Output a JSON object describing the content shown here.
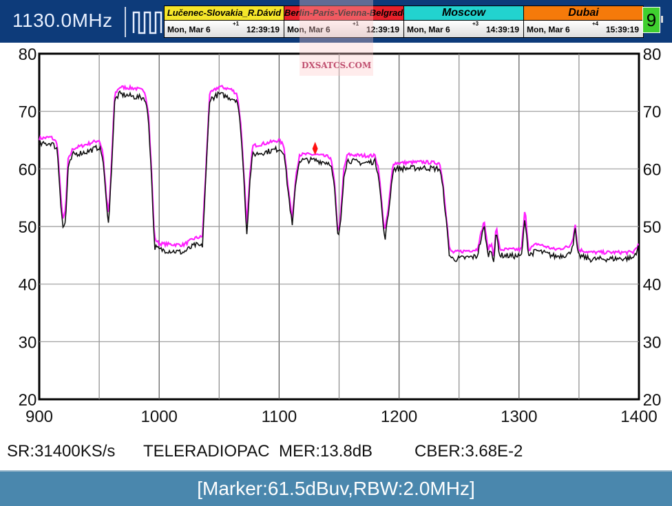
{
  "header": {
    "frequency": "1130.0MHz",
    "signal_icon": "pulse-wave-icon",
    "clocks": [
      {
        "city": "Lučenec-Slovakia_R.Dávid",
        "color": "#f5e52a",
        "date": "Mon, Mar 6",
        "offset": "+1",
        "time": "12:39:19"
      },
      {
        "city": "Berlin-Paris-Vienna-Belgrade",
        "color": "#e8202a",
        "date": "Mon, Mar 6",
        "offset": "+1",
        "time": "12:39:19"
      },
      {
        "city": "Moscow",
        "color": "#22d3cf",
        "date": "Mon, Mar 6",
        "offset": "+3",
        "time": "14:39:19"
      },
      {
        "city": "Dubai",
        "color": "#f57a0a",
        "date": "Mon, Mar 6",
        "offset": "+4",
        "time": "15:39:19"
      }
    ],
    "battery_label": "9",
    "watermark": "DXSATCS.COM"
  },
  "chart_data": {
    "type": "line",
    "xlim": [
      900,
      1400
    ],
    "ylim": [
      20,
      80
    ],
    "x_ticks": [
      "900",
      "1000",
      "1100",
      "1200",
      "1300",
      "1400"
    ],
    "y_ticks": [
      "80",
      "70",
      "60",
      "50",
      "40",
      "30",
      "20"
    ],
    "grid": true,
    "x_grid_step": 50,
    "y_grid_step": 10,
    "marker": {
      "freq": 1130,
      "level": 63.5,
      "color": "#ff1010"
    },
    "series": [
      {
        "color": "#ff20ff",
        "points": [
          [
            900,
            65.3
          ],
          [
            910,
            65.5
          ],
          [
            915,
            64.5
          ],
          [
            918,
            55
          ],
          [
            920,
            51
          ],
          [
            922,
            53
          ],
          [
            924,
            61.5
          ],
          [
            928,
            63.5
          ],
          [
            940,
            64.3
          ],
          [
            950,
            65
          ],
          [
            953,
            63
          ],
          [
            956,
            55
          ],
          [
            958,
            52
          ],
          [
            960,
            60
          ],
          [
            963,
            73
          ],
          [
            967,
            74.2
          ],
          [
            980,
            74
          ],
          [
            988,
            73.5
          ],
          [
            991,
            70
          ],
          [
            994,
            58
          ],
          [
            996,
            48
          ],
          [
            1000,
            47
          ],
          [
            1020,
            46.8
          ],
          [
            1030,
            48
          ],
          [
            1036,
            48.2
          ],
          [
            1039,
            60
          ],
          [
            1042,
            73
          ],
          [
            1050,
            74.3
          ],
          [
            1060,
            73.8
          ],
          [
            1065,
            73
          ],
          [
            1068,
            68
          ],
          [
            1071,
            58
          ],
          [
            1073,
            50
          ],
          [
            1076,
            60
          ],
          [
            1078,
            64
          ],
          [
            1090,
            64.5
          ],
          [
            1100,
            65
          ],
          [
            1104,
            64
          ],
          [
            1107,
            58
          ],
          [
            1111,
            51
          ],
          [
            1114,
            59
          ],
          [
            1117,
            62.5
          ],
          [
            1130,
            62.5
          ],
          [
            1143,
            62
          ],
          [
            1146,
            58
          ],
          [
            1149,
            49
          ],
          [
            1151,
            51
          ],
          [
            1154,
            60
          ],
          [
            1157,
            62.5
          ],
          [
            1170,
            62.3
          ],
          [
            1180,
            62.3
          ],
          [
            1183,
            60
          ],
          [
            1186,
            53
          ],
          [
            1188,
            49
          ],
          [
            1191,
            53
          ],
          [
            1195,
            61
          ],
          [
            1220,
            61.2
          ],
          [
            1234,
            61
          ],
          [
            1237,
            57
          ],
          [
            1242,
            46
          ],
          [
            1245,
            45.5
          ],
          [
            1265,
            46
          ],
          [
            1268,
            48.5
          ],
          [
            1271,
            51
          ],
          [
            1274,
            46
          ],
          [
            1277,
            47
          ],
          [
            1279,
            45
          ],
          [
            1281,
            50
          ],
          [
            1284,
            46
          ],
          [
            1302,
            46
          ],
          [
            1305,
            53
          ],
          [
            1308,
            46
          ],
          [
            1315,
            47
          ],
          [
            1330,
            46
          ],
          [
            1342,
            46.5
          ],
          [
            1345,
            48
          ],
          [
            1347,
            50.5
          ],
          [
            1349,
            46
          ],
          [
            1360,
            45.5
          ],
          [
            1395,
            45.5
          ],
          [
            1400,
            47
          ]
        ]
      },
      {
        "color": "#111111",
        "points": [
          [
            900,
            64.2
          ],
          [
            910,
            64.5
          ],
          [
            915,
            63.5
          ],
          [
            918,
            54
          ],
          [
            920,
            49.5
          ],
          [
            922,
            51
          ],
          [
            924,
            60
          ],
          [
            928,
            62.5
          ],
          [
            940,
            63
          ],
          [
            950,
            63.8
          ],
          [
            953,
            62
          ],
          [
            956,
            54
          ],
          [
            958,
            50.5
          ],
          [
            960,
            59
          ],
          [
            963,
            72
          ],
          [
            967,
            73
          ],
          [
            980,
            72.5
          ],
          [
            988,
            72.3
          ],
          [
            991,
            69
          ],
          [
            994,
            57
          ],
          [
            996,
            46.5
          ],
          [
            1000,
            46
          ],
          [
            1020,
            45.5
          ],
          [
            1030,
            46.8
          ],
          [
            1036,
            46.5
          ],
          [
            1039,
            59
          ],
          [
            1042,
            72
          ],
          [
            1050,
            73
          ],
          [
            1060,
            72.3
          ],
          [
            1065,
            72
          ],
          [
            1068,
            67
          ],
          [
            1071,
            57
          ],
          [
            1073,
            48.5
          ],
          [
            1076,
            59
          ],
          [
            1078,
            62.5
          ],
          [
            1090,
            63
          ],
          [
            1100,
            63.5
          ],
          [
            1104,
            63
          ],
          [
            1107,
            57
          ],
          [
            1111,
            50
          ],
          [
            1114,
            58
          ],
          [
            1117,
            61.5
          ],
          [
            1130,
            61.5
          ],
          [
            1143,
            61
          ],
          [
            1146,
            57
          ],
          [
            1149,
            48
          ],
          [
            1151,
            50
          ],
          [
            1154,
            59
          ],
          [
            1157,
            61.5
          ],
          [
            1170,
            61
          ],
          [
            1180,
            61.3
          ],
          [
            1183,
            59
          ],
          [
            1186,
            52
          ],
          [
            1188,
            47.5
          ],
          [
            1191,
            52
          ],
          [
            1195,
            60
          ],
          [
            1220,
            60.2
          ],
          [
            1234,
            60
          ],
          [
            1237,
            56
          ],
          [
            1242,
            45
          ],
          [
            1245,
            44.3
          ],
          [
            1265,
            44.8
          ],
          [
            1268,
            47.5
          ],
          [
            1271,
            50
          ],
          [
            1274,
            45
          ],
          [
            1277,
            46
          ],
          [
            1279,
            44
          ],
          [
            1281,
            49
          ],
          [
            1284,
            45
          ],
          [
            1302,
            44.8
          ],
          [
            1305,
            51.5
          ],
          [
            1308,
            45
          ],
          [
            1315,
            45.8
          ],
          [
            1330,
            44.8
          ],
          [
            1342,
            45.2
          ],
          [
            1345,
            47
          ],
          [
            1347,
            49.5
          ],
          [
            1349,
            45
          ],
          [
            1360,
            44.3
          ],
          [
            1395,
            44.5
          ],
          [
            1400,
            46.5
          ]
        ]
      }
    ]
  },
  "info": {
    "symbol_rate": "SR:31400KS/s",
    "channel": "TELERADIOPAC",
    "mer": "MER:13.8dB",
    "cber": "CBER:3.68E-2"
  },
  "status": "[Marker:61.5dBuv,RBW:2.0MHz]"
}
